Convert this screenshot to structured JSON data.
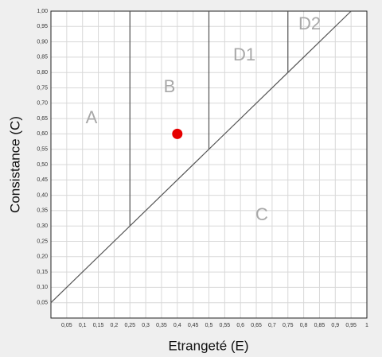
{
  "chart_data": {
    "type": "scatter",
    "x_label": "Etrangeté (E)",
    "y_label": "Consistance (C)",
    "xlim": [
      0,
      1
    ],
    "ylim": [
      0,
      1
    ],
    "xticks": [
      {
        "value": 0.05,
        "label": "0,05"
      },
      {
        "value": 0.1,
        "label": "0,1"
      },
      {
        "value": 0.15,
        "label": "0,15"
      },
      {
        "value": 0.2,
        "label": "0,2"
      },
      {
        "value": 0.25,
        "label": "0,25"
      },
      {
        "value": 0.3,
        "label": "0,3"
      },
      {
        "value": 0.35,
        "label": "0,35"
      },
      {
        "value": 0.4,
        "label": "0,4"
      },
      {
        "value": 0.45,
        "label": "0,45"
      },
      {
        "value": 0.5,
        "label": "0,5"
      },
      {
        "value": 0.55,
        "label": "0,55"
      },
      {
        "value": 0.6,
        "label": "0,6"
      },
      {
        "value": 0.65,
        "label": "0,65"
      },
      {
        "value": 0.7,
        "label": "0,7"
      },
      {
        "value": 0.75,
        "label": "0,75"
      },
      {
        "value": 0.8,
        "label": "0,8"
      },
      {
        "value": 0.85,
        "label": "0,85"
      },
      {
        "value": 0.9,
        "label": "0,9"
      },
      {
        "value": 0.95,
        "label": "0,95"
      },
      1
    ],
    "yticks": [
      {
        "value": 0.05,
        "label": "0,05"
      },
      {
        "value": 0.1,
        "label": "0,10"
      },
      {
        "value": 0.15,
        "label": "0,15"
      },
      {
        "value": 0.2,
        "label": "0,20"
      },
      {
        "value": 0.25,
        "label": "0,25"
      },
      {
        "value": 0.3,
        "label": "0,30"
      },
      {
        "value": 0.35,
        "label": "0,35"
      },
      {
        "value": 0.4,
        "label": "0,40"
      },
      {
        "value": 0.45,
        "label": "0,45"
      },
      {
        "value": 0.5,
        "label": "0,50"
      },
      {
        "value": 0.55,
        "label": "0,55"
      },
      {
        "value": 0.6,
        "label": "0,60"
      },
      {
        "value": 0.65,
        "label": "0,65"
      },
      {
        "value": 0.7,
        "label": "0,70"
      },
      {
        "value": 0.75,
        "label": "0,75"
      },
      {
        "value": 0.8,
        "label": "0,80"
      },
      {
        "value": 0.85,
        "label": "0,85"
      },
      {
        "value": 0.9,
        "label": "0,90"
      },
      {
        "value": 0.95,
        "label": "0,95"
      },
      {
        "value": 1,
        "label": "1,00"
      }
    ],
    "grid": true,
    "boundaries": {
      "color": "#555555",
      "lines": [
        {
          "x": [
            0,
            0.95
          ],
          "y": [
            0.05,
            1
          ]
        },
        {
          "x": [
            0.25,
            0.25
          ],
          "y": [
            0.3,
            1
          ]
        },
        {
          "x": [
            0.5,
            0.5
          ],
          "y": [
            0.55,
            1
          ]
        },
        {
          "x": [
            0.75,
            0.75
          ],
          "y": [
            0.8,
            1
          ]
        }
      ]
    },
    "regions": [
      "A",
      "B",
      "C",
      "D1",
      "D2"
    ],
    "series": [
      {
        "color": "#e60000",
        "x": [
          0.4
        ],
        "values": [
          0.6
        ]
      }
    ]
  }
}
